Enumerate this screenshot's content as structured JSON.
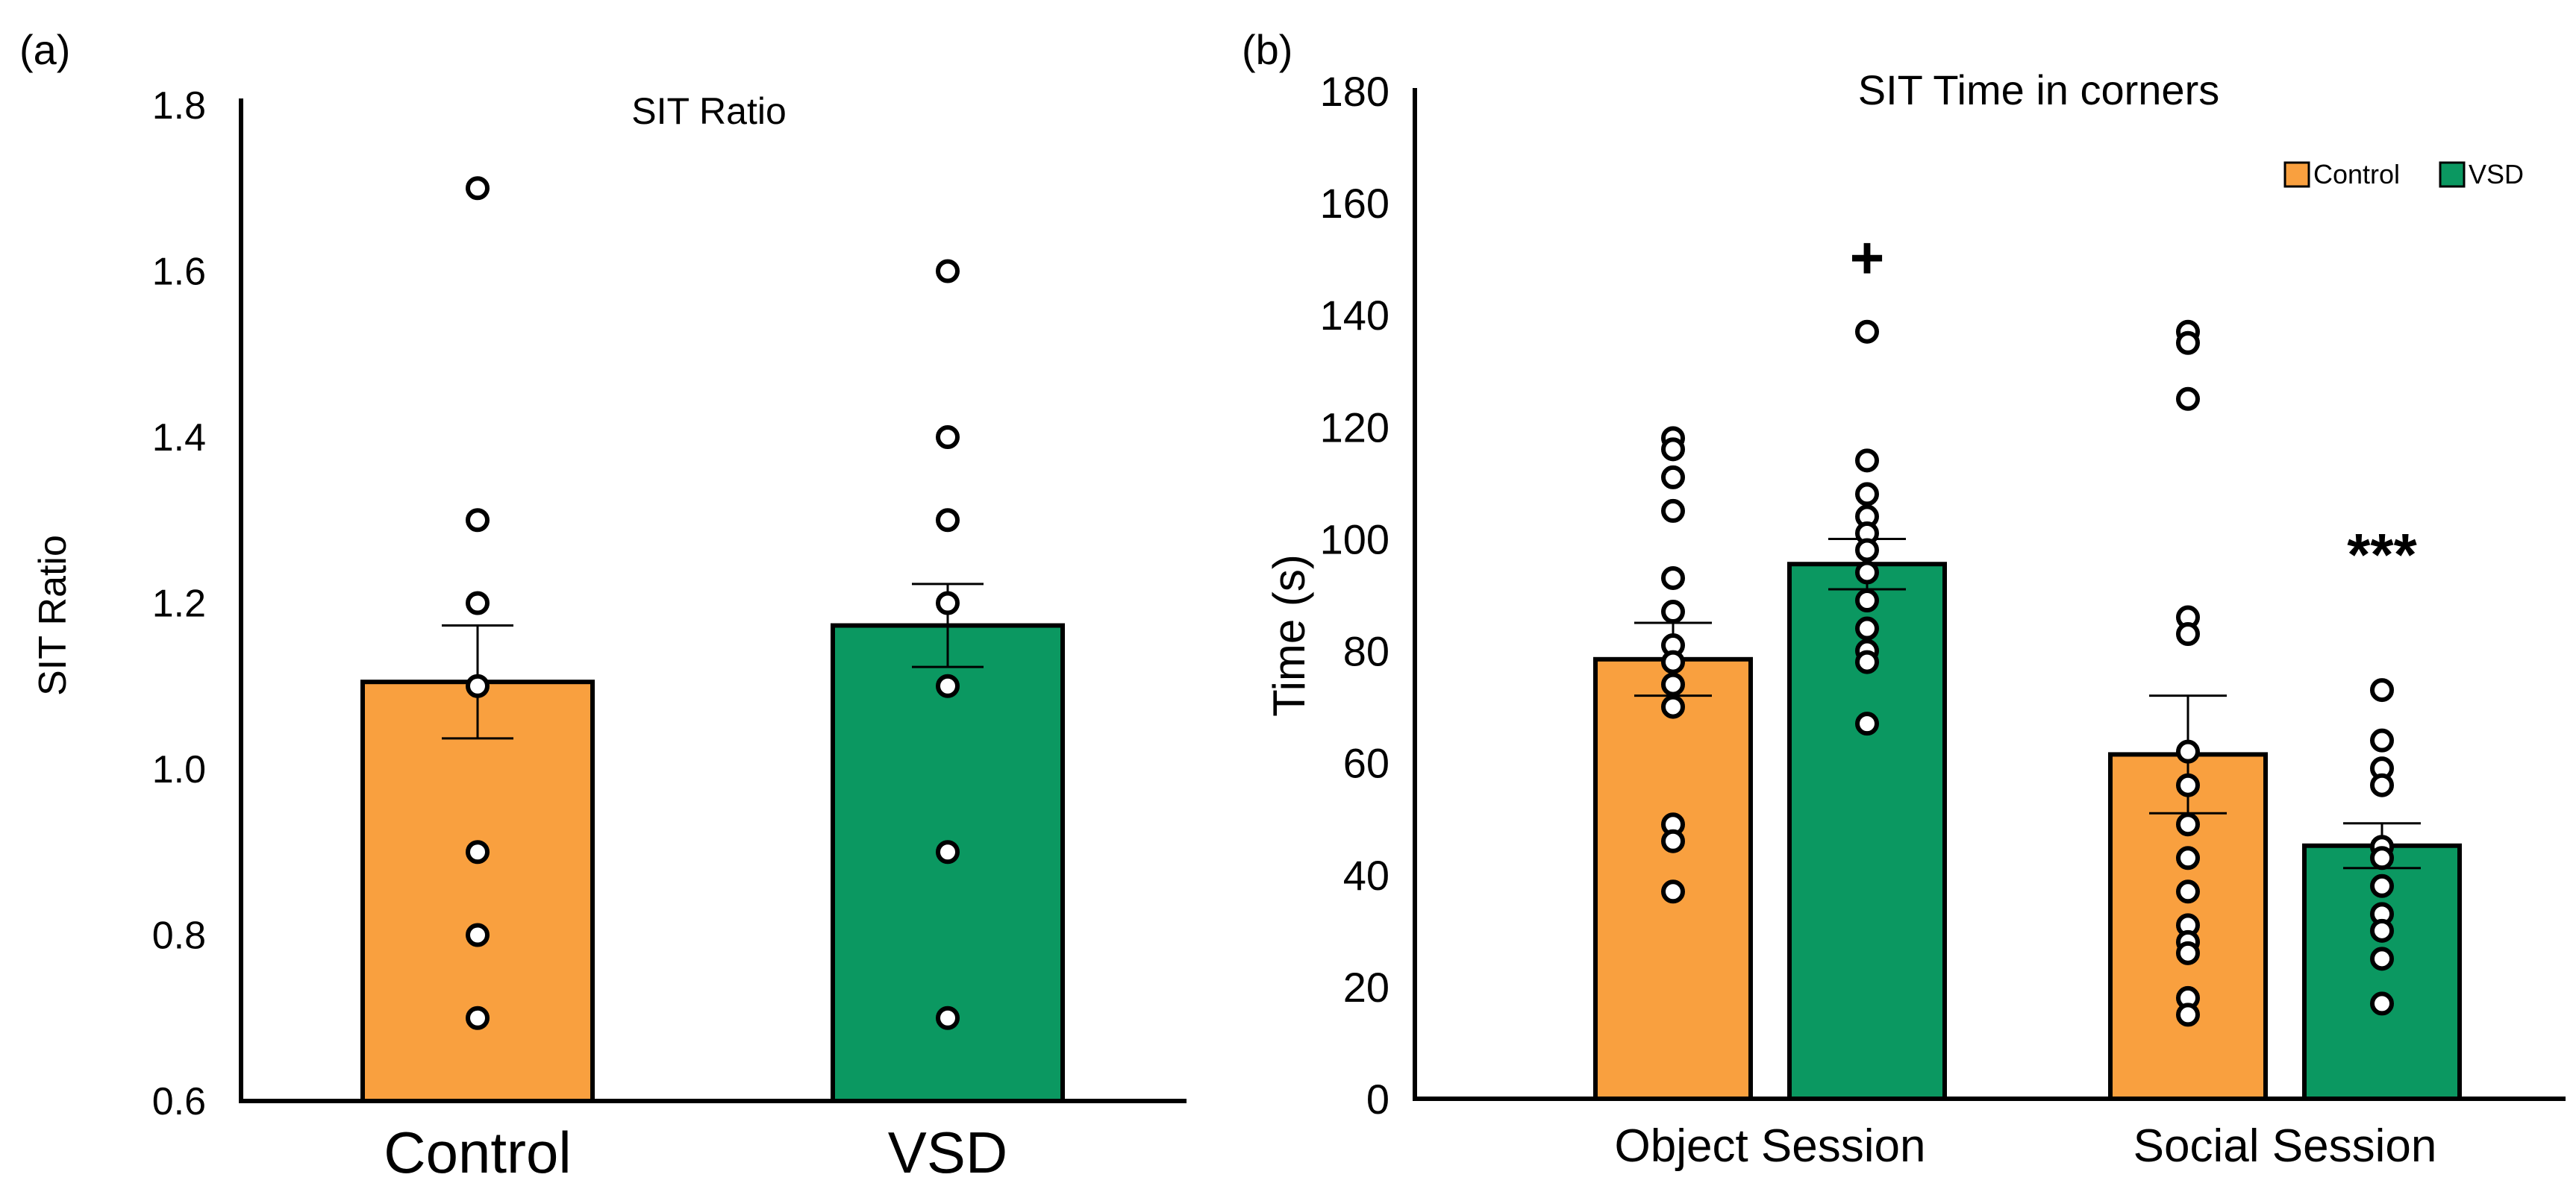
{
  "figure": {
    "colors": {
      "control": "#f9a03f",
      "vsd": "#0b9861",
      "outline": "#000000",
      "point_fill": "#ffffff"
    }
  },
  "chart_data": [
    {
      "panel_label": "(a)",
      "type": "bar",
      "title": "SIT Ratio",
      "xlabel": "",
      "ylabel": "SIT Ratio",
      "ylim": [
        0.6,
        1.8
      ],
      "yticks": [
        0.6,
        0.8,
        1.0,
        1.2,
        1.4,
        1.6,
        1.8
      ],
      "ytick_labels": [
        "0.6",
        "0.8",
        "1.0",
        "1.2",
        "1.4",
        "1.6",
        "1.8"
      ],
      "categories": [
        "Control",
        "VSD"
      ],
      "grid": false,
      "legend": "none",
      "bars": [
        {
          "group": "Control",
          "mean": 1.105,
          "sem": 0.068,
          "points": [
            1.7,
            1.3,
            1.2,
            1.1,
            0.9,
            0.8,
            0.7
          ]
        },
        {
          "group": "VSD",
          "mean": 1.173,
          "sem": 0.05,
          "points": [
            1.6,
            1.4,
            1.3,
            1.2,
            1.1,
            0.9,
            0.7
          ]
        }
      ]
    },
    {
      "panel_label": "(b)",
      "type": "bar",
      "title": "SIT Time in corners",
      "xlabel": "",
      "ylabel": "Time (s)",
      "ylim": [
        0,
        180
      ],
      "yticks": [
        0,
        20,
        40,
        60,
        80,
        100,
        120,
        140,
        160,
        180
      ],
      "ytick_labels": [
        "0",
        "20",
        "40",
        "60",
        "80",
        "100",
        "120",
        "140",
        "160",
        "180"
      ],
      "categories": [
        "Object Session",
        "Social Session"
      ],
      "grid": false,
      "legend": "top-right",
      "legend_entries": [
        "Control",
        "VSD"
      ],
      "series": [
        {
          "name": "Control",
          "means": [
            78.5,
            61.5
          ],
          "sems": [
            6.5,
            10.5
          ],
          "points": [
            [
              118,
              116,
              111,
              105,
              93,
              87,
              81,
              78,
              74,
              70,
              49,
              46,
              37
            ],
            [
              137,
              135,
              125,
              86,
              83,
              62,
              56,
              49,
              43,
              37,
              31,
              28,
              26,
              18,
              15
            ]
          ]
        },
        {
          "name": "VSD",
          "means": [
            95.5,
            45.2
          ],
          "sems": [
            4.5,
            4.0
          ],
          "points": [
            [
              137,
              114,
              108,
              104,
              101,
              98,
              94,
              89,
              84,
              80,
              78,
              67
            ],
            [
              73,
              64,
              59,
              56,
              45,
              43,
              38,
              33,
              30,
              25,
              17
            ]
          ]
        }
      ],
      "annotations": [
        {
          "text": "+",
          "category": "Object Session",
          "series": "VSD",
          "at_value": 150
        },
        {
          "text": "***",
          "category": "Social Session",
          "series": "VSD",
          "at_value": 97
        }
      ]
    }
  ]
}
